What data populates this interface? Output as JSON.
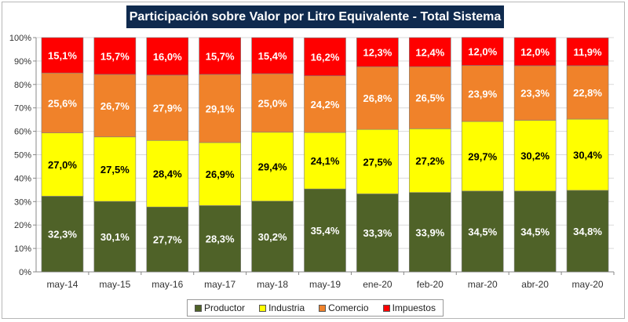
{
  "chart_data": {
    "type": "bar",
    "stacked": true,
    "title": "Participación sobre Valor por Litro Equivalente - Total Sistema",
    "categories": [
      "may-14",
      "may-15",
      "may-16",
      "may-17",
      "may-18",
      "may-19",
      "ene-20",
      "feb-20",
      "mar-20",
      "abr-20",
      "may-20"
    ],
    "yticks": [
      "0%",
      "10%",
      "20%",
      "30%",
      "40%",
      "50%",
      "60%",
      "70%",
      "80%",
      "90%",
      "100%"
    ],
    "ylim": [
      0,
      100
    ],
    "series": [
      {
        "name": "Productor",
        "color": "#4f6228",
        "labels": [
          "32,3%",
          "30,1%",
          "27,7%",
          "28,3%",
          "30,2%",
          "35,4%",
          "33,3%",
          "33,9%",
          "34,5%",
          "34,5%",
          "34,8%"
        ],
        "values": [
          32.3,
          30.1,
          27.7,
          28.3,
          30.2,
          35.4,
          33.3,
          33.9,
          34.5,
          34.5,
          34.8
        ]
      },
      {
        "name": "Industria",
        "color": "#ffff00",
        "labels": [
          "27,0%",
          "27,5%",
          "28,4%",
          "26,9%",
          "29,4%",
          "24,1%",
          "27,5%",
          "27,2%",
          "29,7%",
          "30,2%",
          "30,4%"
        ],
        "values": [
          27.0,
          27.5,
          28.4,
          26.9,
          29.4,
          24.1,
          27.5,
          27.2,
          29.7,
          30.2,
          30.4
        ]
      },
      {
        "name": "Comercio",
        "color": "#f0822a",
        "labels": [
          "25,6%",
          "26,7%",
          "27,9%",
          "29,1%",
          "25,0%",
          "24,2%",
          "26,8%",
          "26,5%",
          "23,9%",
          "23,3%",
          "22,8%"
        ],
        "values": [
          25.6,
          26.7,
          27.9,
          29.1,
          25.0,
          24.2,
          26.8,
          26.5,
          23.9,
          23.3,
          22.8
        ]
      },
      {
        "name": "Impuestos",
        "color": "#ff0000",
        "labels": [
          "15,1%",
          "15,7%",
          "16,0%",
          "15,7%",
          "15,4%",
          "16,2%",
          "12,3%",
          "12,4%",
          "12,0%",
          "12,0%",
          "11,9%"
        ],
        "values": [
          15.1,
          15.7,
          16.0,
          15.7,
          15.4,
          16.2,
          12.3,
          12.4,
          12.0,
          12.0,
          11.9
        ]
      }
    ],
    "legend_position": "bottom"
  }
}
